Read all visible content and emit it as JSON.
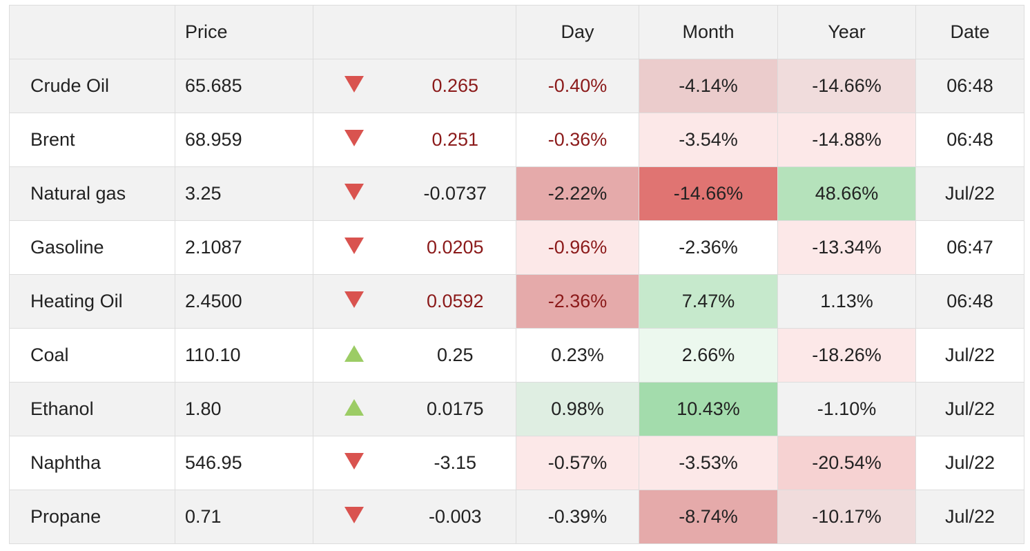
{
  "table": {
    "headers": {
      "name": "",
      "price": "Price",
      "arrow": "",
      "change": "",
      "day": "Day",
      "month": "Month",
      "year": "Year",
      "date": "Date"
    },
    "rows": [
      {
        "name": "Crude Oil",
        "price": "65.685",
        "direction": "down",
        "change": "0.265",
        "change_red": true,
        "day": "-0.40%",
        "day_red": true,
        "day_bg": "",
        "month": "-4.14%",
        "month_bg": "#ebcccc",
        "year": "-14.66%",
        "year_bg": "#f0dcdc",
        "date": "06:48"
      },
      {
        "name": "Brent",
        "price": "68.959",
        "direction": "down",
        "change": "0.251",
        "change_red": true,
        "day": "-0.36%",
        "day_red": true,
        "day_bg": "",
        "month": "-3.54%",
        "month_bg": "#fce8e8",
        "year": "-14.88%",
        "year_bg": "#fce8e8",
        "date": "06:48"
      },
      {
        "name": "Natural gas",
        "price": "3.25",
        "direction": "down",
        "change": "-0.0737",
        "change_red": false,
        "day": "-2.22%",
        "day_red": false,
        "day_bg": "#e5aaaa",
        "month": "-14.66%",
        "month_bg": "#e07472",
        "year": "48.66%",
        "year_bg": "#b5e2bb",
        "date": "Jul/22"
      },
      {
        "name": "Gasoline",
        "price": "2.1087",
        "direction": "down",
        "change": "0.0205",
        "change_red": true,
        "day": "-0.96%",
        "day_red": true,
        "day_bg": "#fce8e8",
        "month": "-2.36%",
        "month_bg": "",
        "year": "-13.34%",
        "year_bg": "#fce8e8",
        "date": "06:47"
      },
      {
        "name": "Heating Oil",
        "price": "2.4500",
        "direction": "down",
        "change": "0.0592",
        "change_red": true,
        "day": "-2.36%",
        "day_red": true,
        "day_bg": "#e5aaaa",
        "month": "7.47%",
        "month_bg": "#c6e9cc",
        "year": "1.13%",
        "year_bg": "",
        "date": "06:48"
      },
      {
        "name": "Coal",
        "price": "110.10",
        "direction": "up",
        "change": "0.25",
        "change_red": false,
        "day": "0.23%",
        "day_red": false,
        "day_bg": "",
        "month": "2.66%",
        "month_bg": "#ecf8ee",
        "year": "-18.26%",
        "year_bg": "#fce8e8",
        "date": "Jul/22"
      },
      {
        "name": "Ethanol",
        "price": "1.80",
        "direction": "up",
        "change": "0.0175",
        "change_red": false,
        "day": "0.98%",
        "day_red": false,
        "day_bg": "#dfeee2",
        "month": "10.43%",
        "month_bg": "#a3dcac",
        "year": "-1.10%",
        "year_bg": "",
        "date": "Jul/22"
      },
      {
        "name": "Naphtha",
        "price": "546.95",
        "direction": "down",
        "change": "-3.15",
        "change_red": false,
        "day": "-0.57%",
        "day_red": false,
        "day_bg": "#fce8e8",
        "month": "-3.53%",
        "month_bg": "#fce8e8",
        "year": "-20.54%",
        "year_bg": "#f6d2d2",
        "date": "Jul/22"
      },
      {
        "name": "Propane",
        "price": "0.71",
        "direction": "down",
        "change": "-0.003",
        "change_red": false,
        "day": "-0.39%",
        "day_red": false,
        "day_bg": "",
        "month": "-8.74%",
        "month_bg": "#e5aaaa",
        "year": "-10.17%",
        "year_bg": "#f0dcdc",
        "date": "Jul/22"
      }
    ]
  },
  "colors": {
    "down_arrow": "#d9534f",
    "up_arrow": "#9ccc65",
    "red_text": "#8b1a1a",
    "border": "#dddddd",
    "stripe": "#f2f2f2"
  }
}
